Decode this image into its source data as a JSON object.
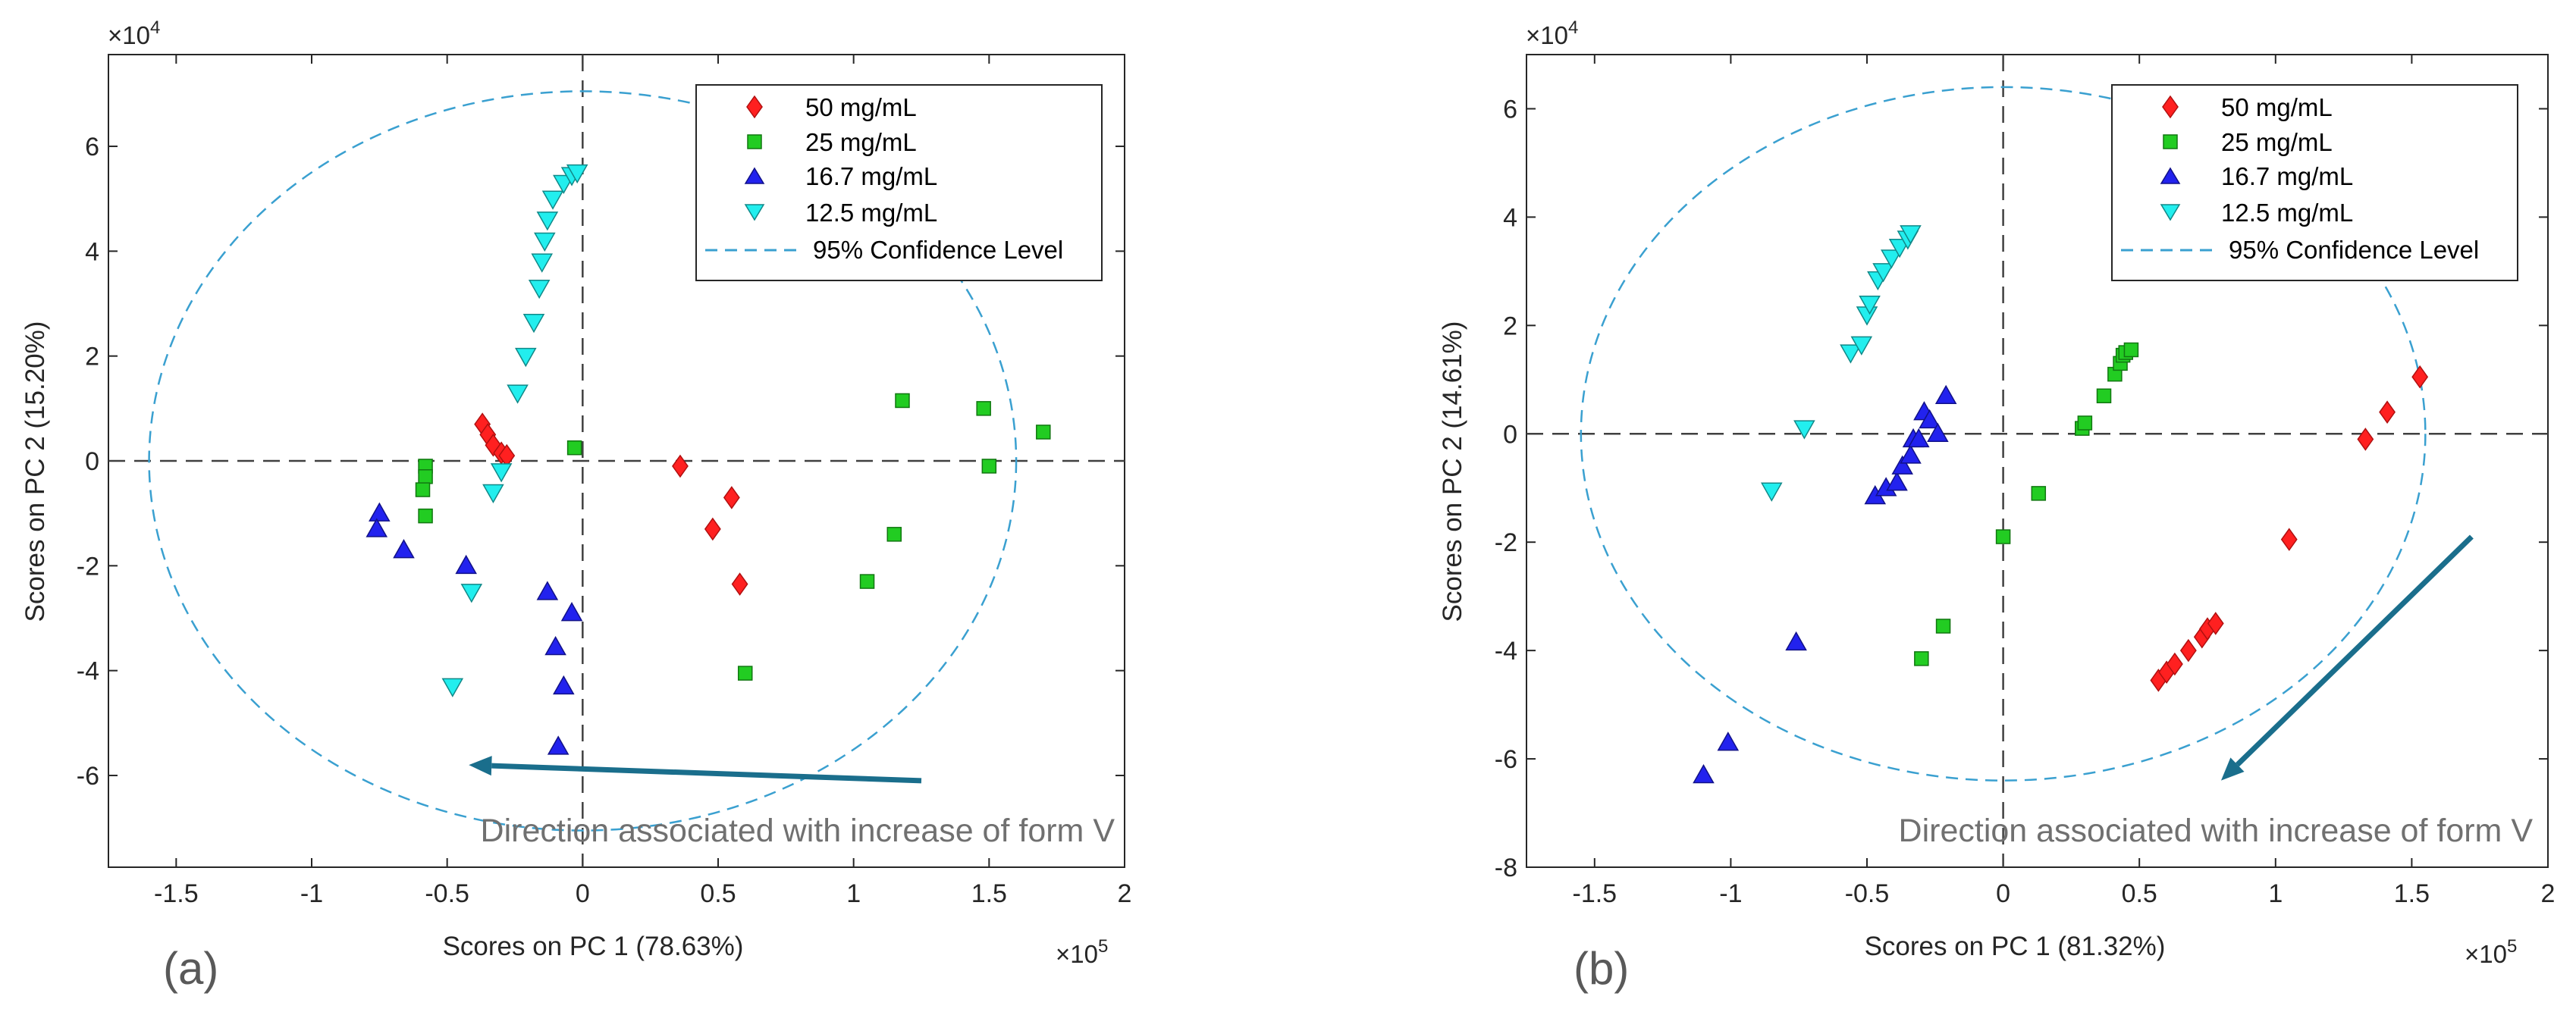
{
  "colors": {
    "50": "#ff2020",
    "25": "#22cc22",
    "16.7": "#2222ee",
    "12.5": "#22eeee",
    "conf": "#3aa0d0",
    "arrow": "#1a6e8c"
  },
  "legend": [
    "50 mg/mL",
    "25 mg/mL",
    "16.7 mg/mL",
    "12.5 mg/mL",
    "95% Confidence Level"
  ],
  "chart_data": [
    {
      "type": "scatter",
      "panel_label": "(a)",
      "xlabel": "Scores on PC 1 (78.63%)",
      "ylabel": "Scores on PC 2 (15.20%)",
      "x_exponent": "×10",
      "x_exponent_power": "5",
      "y_exponent": "×10",
      "y_exponent_power": "4",
      "xlim": [
        -1.75,
        2.0
      ],
      "ylim": [
        -7.75,
        7.75
      ],
      "xticks": [
        -1.5,
        -1,
        -0.5,
        0,
        0.5,
        1,
        1.5,
        2
      ],
      "xtick_labels": [
        "-1.5",
        "-1",
        "-0.5",
        "0",
        "0.5",
        "1",
        "1.5",
        "2"
      ],
      "yticks": [
        -6,
        -4,
        -2,
        0,
        2,
        4,
        6
      ],
      "ytick_labels": [
        "-6",
        "-4",
        "-2",
        "0",
        "2",
        "4",
        "6"
      ],
      "ellipse": {
        "cx": 0.0,
        "cy": 0.0,
        "rx": 1.6,
        "ry": 7.05
      },
      "annotation": "Direction associated with increase of form V",
      "arrow": {
        "from": [
          1.25,
          -6.1
        ],
        "to": [
          -0.42,
          -5.8
        ]
      },
      "series": [
        {
          "name": "50 mg/mL",
          "marker": "diamond",
          "x": [
            -0.37,
            -0.35,
            -0.33,
            -0.3,
            -0.28,
            0.36,
            0.48,
            0.55,
            0.58
          ],
          "y": [
            0.7,
            0.5,
            0.3,
            0.15,
            0.1,
            -0.1,
            -1.3,
            -0.7,
            -2.35
          ]
        },
        {
          "name": "25 mg/mL",
          "marker": "square",
          "x": [
            -0.58,
            -0.58,
            -0.59,
            -0.58,
            -0.03,
            0.6,
            1.05,
            1.15,
            1.18,
            1.48,
            1.5,
            1.7
          ],
          "y": [
            -0.1,
            -0.3,
            -0.55,
            -1.05,
            0.25,
            -4.05,
            -2.3,
            -1.4,
            1.15,
            1.0,
            -0.1,
            0.55
          ]
        },
        {
          "name": "16.7 mg/mL",
          "marker": "triangle-up",
          "x": [
            -0.75,
            -0.76,
            -0.66,
            -0.43,
            -0.13,
            -0.1,
            -0.09,
            -0.07,
            -0.04
          ],
          "y": [
            -1.0,
            -1.3,
            -1.7,
            -2.0,
            -2.5,
            -3.55,
            -5.45,
            -4.3,
            -2.9
          ]
        },
        {
          "name": "12.5 mg/mL",
          "marker": "triangle-down",
          "x": [
            -0.48,
            -0.41,
            -0.33,
            -0.3,
            -0.24,
            -0.21,
            -0.18,
            -0.16,
            -0.15,
            -0.14,
            -0.13,
            -0.11,
            -0.07,
            -0.04,
            -0.02
          ],
          "y": [
            -4.3,
            -2.5,
            -0.6,
            -0.2,
            1.3,
            2.0,
            2.65,
            3.3,
            3.8,
            4.2,
            4.6,
            5.0,
            5.3,
            5.45,
            5.5
          ]
        }
      ]
    },
    {
      "type": "scatter",
      "panel_label": "(b)",
      "xlabel": "Scores on PC 1 (81.32%)",
      "ylabel": "Scores on PC 2 (14.61%)",
      "x_exponent": "×10",
      "x_exponent_power": "5",
      "y_exponent": "×10",
      "y_exponent_power": "4",
      "xlim": [
        -1.75,
        2.0
      ],
      "ylim": [
        -8.0,
        7.0
      ],
      "xticks": [
        -1.5,
        -1,
        -0.5,
        0,
        0.5,
        1,
        1.5,
        2
      ],
      "xtick_labels": [
        "-1.5",
        "-1",
        "-0.5",
        "0",
        "0.5",
        "1",
        "1.5",
        "2"
      ],
      "yticks": [
        -8,
        -6,
        -4,
        -2,
        0,
        2,
        4,
        6
      ],
      "ytick_labels": [
        "-8",
        "-6",
        "-4",
        "-2",
        "0",
        "2",
        "4",
        "6"
      ],
      "ellipse": {
        "cx": 0.0,
        "cy": 0.0,
        "rx": 1.55,
        "ry": 6.4
      },
      "annotation": "Direction associated with increase of form V",
      "arrow": {
        "from": [
          1.72,
          -1.9
        ],
        "to": [
          0.8,
          -6.4
        ]
      },
      "series": [
        {
          "name": "50 mg/mL",
          "marker": "diamond",
          "x": [
            0.57,
            0.6,
            0.63,
            0.68,
            0.73,
            0.75,
            0.78,
            1.05,
            1.33,
            1.41,
            1.53
          ],
          "y": [
            -4.55,
            -4.4,
            -4.25,
            -4.0,
            -3.75,
            -3.6,
            -3.5,
            -1.95,
            -0.1,
            0.4,
            1.05
          ]
        },
        {
          "name": "25 mg/mL",
          "marker": "square",
          "x": [
            -0.3,
            -0.22,
            0.0,
            0.13,
            0.29,
            0.3,
            0.37,
            0.41,
            0.43,
            0.44,
            0.45,
            0.47
          ],
          "y": [
            -4.15,
            -3.55,
            -1.9,
            -1.1,
            0.1,
            0.2,
            0.7,
            1.1,
            1.3,
            1.45,
            1.5,
            1.55
          ]
        },
        {
          "name": "16.7 mg/mL",
          "marker": "triangle-up",
          "x": [
            -1.1,
            -1.01,
            -0.76,
            -0.47,
            -0.43,
            -0.39,
            -0.37,
            -0.34,
            -0.33,
            -0.31,
            -0.29,
            -0.27,
            -0.24,
            -0.21
          ],
          "y": [
            -6.3,
            -5.7,
            -3.85,
            -1.15,
            -1.0,
            -0.9,
            -0.6,
            -0.4,
            -0.1,
            -0.1,
            0.4,
            0.25,
            0.0,
            0.7
          ]
        },
        {
          "name": "12.5 mg/mL",
          "marker": "triangle-down",
          "x": [
            -0.85,
            -0.73,
            -0.56,
            -0.52,
            -0.5,
            -0.49,
            -0.46,
            -0.44,
            -0.41,
            -0.38,
            -0.35,
            -0.34
          ],
          "y": [
            -1.05,
            0.1,
            1.5,
            1.65,
            2.2,
            2.4,
            2.85,
            3.0,
            3.25,
            3.45,
            3.6,
            3.7
          ]
        }
      ]
    }
  ]
}
